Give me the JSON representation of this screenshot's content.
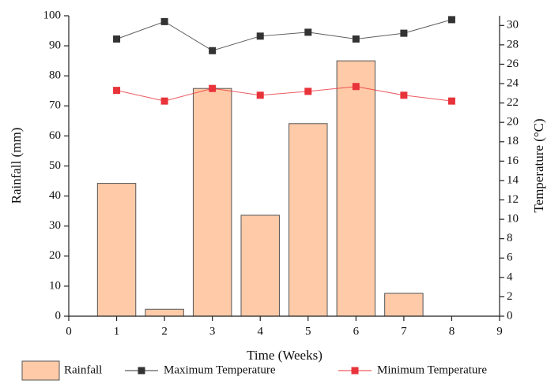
{
  "chart_data": {
    "type": "bar",
    "x": [
      1,
      2,
      3,
      4,
      5,
      6,
      7,
      8
    ],
    "xlabel": "Time (Weeks)",
    "ylabel": "Rainfall (mm)",
    "y2label": "Temperature (°C)",
    "xlim": [
      0,
      9
    ],
    "xticks": [
      0,
      1,
      2,
      3,
      4,
      5,
      6,
      7,
      8,
      9
    ],
    "ylim": [
      0,
      100
    ],
    "yticks": [
      0,
      10,
      20,
      30,
      40,
      50,
      60,
      70,
      80,
      90,
      100
    ],
    "y2lim": [
      0,
      31
    ],
    "y2ticks": [
      0,
      2,
      4,
      6,
      8,
      10,
      12,
      14,
      16,
      18,
      20,
      22,
      24,
      26,
      28,
      30
    ],
    "series": [
      {
        "name": "Rainfall",
        "type": "bar",
        "color": "#ffcaa8",
        "values": [
          44.2,
          2.3,
          75.8,
          33.6,
          64.1,
          85,
          7.6,
          null
        ]
      },
      {
        "name": "Maximum Temperature",
        "type": "line",
        "axis": "y2",
        "color": "#333333",
        "values": [
          28.6,
          30.4,
          27.4,
          28.9,
          29.3,
          28.6,
          29.2,
          30.6
        ]
      },
      {
        "name": "Minimum Temperature",
        "type": "line",
        "axis": "y2",
        "color": "#e8333a",
        "values": [
          23.3,
          22.2,
          23.5,
          22.8,
          23.2,
          23.7,
          22.8,
          22.2
        ]
      }
    ]
  }
}
